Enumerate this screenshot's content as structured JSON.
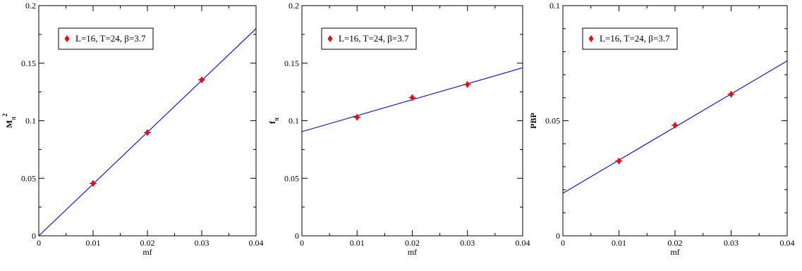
{
  "chart_data": [
    {
      "type": "scatter",
      "xlabel": "mf",
      "ylabel": "M",
      "ylabel_sub": "π",
      "ylabel_sup": "2",
      "xlim": [
        0,
        0.04
      ],
      "ylim": [
        0,
        0.2
      ],
      "xticks": [
        "0",
        "0.01",
        "0.02",
        "0.03",
        "0.04"
      ],
      "yticks": [
        "0",
        "0.05",
        "0.1",
        "0.15",
        "0.2"
      ],
      "legend": "top-left",
      "grid": false,
      "series": [
        {
          "name": "L=16, T=24, β=3.7",
          "color": "#ff0000",
          "marker": "diamond",
          "x": [
            0.01,
            0.02,
            0.03
          ],
          "y": [
            0.0455,
            0.0897,
            0.1355
          ]
        }
      ],
      "fit": {
        "color": "#0000ff",
        "x": [
          0,
          0.04
        ],
        "y": [
          0.0,
          0.18
        ]
      }
    },
    {
      "type": "scatter",
      "xlabel": "mf",
      "ylabel": "f",
      "ylabel_sub": "π",
      "ylabel_sup": "",
      "xlim": [
        0,
        0.04
      ],
      "ylim": [
        0,
        0.2
      ],
      "xticks": [
        "0",
        "0.01",
        "0.02",
        "0.03",
        "0.04"
      ],
      "yticks": [
        "0",
        "0.05",
        "0.1",
        "0.15",
        "0.2"
      ],
      "legend": "top-left",
      "grid": false,
      "series": [
        {
          "name": "L=16, T=24, β=3.7",
          "color": "#ff0000",
          "marker": "diamond",
          "x": [
            0.01,
            0.02,
            0.03
          ],
          "y": [
            0.103,
            0.12,
            0.1315
          ]
        }
      ],
      "fit": {
        "color": "#0000ff",
        "x": [
          0,
          0.04
        ],
        "y": [
          0.0905,
          0.146
        ]
      }
    },
    {
      "type": "scatter",
      "xlabel": "mf",
      "ylabel": "PBP",
      "ylabel_sub": "",
      "ylabel_sup": "",
      "xlim": [
        0,
        0.04
      ],
      "ylim": [
        0,
        0.1
      ],
      "xticks": [
        "0",
        "0.01",
        "0.02",
        "0.03",
        "0.04"
      ],
      "yticks": [
        "0",
        "0.05",
        "0.1"
      ],
      "legend": "top-left",
      "grid": false,
      "series": [
        {
          "name": "L=16, T=24, β=3.7",
          "color": "#ff0000",
          "marker": "diamond",
          "x": [
            0.01,
            0.02,
            0.03
          ],
          "y": [
            0.0325,
            0.048,
            0.0615
          ]
        }
      ],
      "fit": {
        "color": "#0000ff",
        "x": [
          0,
          0.04
        ],
        "y": [
          0.0185,
          0.076
        ]
      }
    }
  ]
}
